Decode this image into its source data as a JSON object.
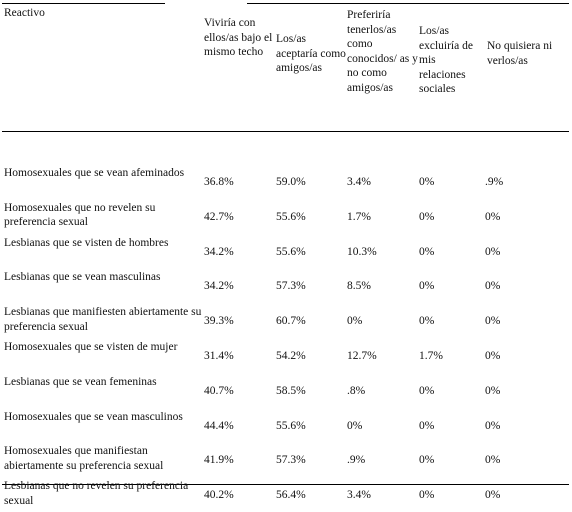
{
  "table": {
    "headers": [
      "Reactivo",
      "Viviría con ellos/as bajo el mismo techo",
      "Los/as aceptaría como amigos/as",
      "Preferiría tenerlos/as como conocidos/ as y no como amigos/as",
      "Los/as excluiría de mis relaciones sociales",
      "No quisiera ni verlos/as"
    ],
    "rows": [
      {
        "label": "Homosexuales que se vean afeminados",
        "values": [
          "36.8%",
          "59.0%",
          "3.4%",
          "0%",
          ".9%"
        ]
      },
      {
        "label": "Homosexuales que no revelen su preferencia sexual",
        "values": [
          "42.7%",
          "55.6%",
          "1.7%",
          "0%",
          "0%"
        ]
      },
      {
        "label": "Lesbianas que se visten de hombres",
        "values": [
          "34.2%",
          "55.6%",
          "10.3%",
          "0%",
          "0%"
        ]
      },
      {
        "label": "Lesbianas que se vean masculinas",
        "values": [
          "34.2%",
          "57.3%",
          "8.5%",
          "0%",
          "0%"
        ]
      },
      {
        "label": "Lesbianas que manifiesten abiertamente su preferencia sexual",
        "values": [
          "39.3%",
          "60.7%",
          "0%",
          "0%",
          "0%"
        ]
      },
      {
        "label": "Homosexuales que se visten de mujer",
        "values": [
          "31.4%",
          "54.2%",
          "12.7%",
          "1.7%",
          "0%"
        ]
      },
      {
        "label": "Lesbianas que se vean femeninas",
        "values": [
          "40.7%",
          "58.5%",
          ".8%",
          "0%",
          "0%"
        ]
      },
      {
        "label": "Homosexuales que se vean masculinos",
        "values": [
          "44.4%",
          "55.6%",
          "0%",
          "0%",
          "0%"
        ]
      },
      {
        "label": "Homosexuales que manifiestan abiertamente su preferencia sexual",
        "values": [
          "41.9%",
          "57.3%",
          ".9%",
          "0%",
          "0%"
        ]
      },
      {
        "label": "Lesbianas que no revelen su preferencia sexual",
        "values": [
          "40.2%",
          "56.4%",
          "3.4%",
          "0%",
          "0%"
        ]
      }
    ]
  }
}
